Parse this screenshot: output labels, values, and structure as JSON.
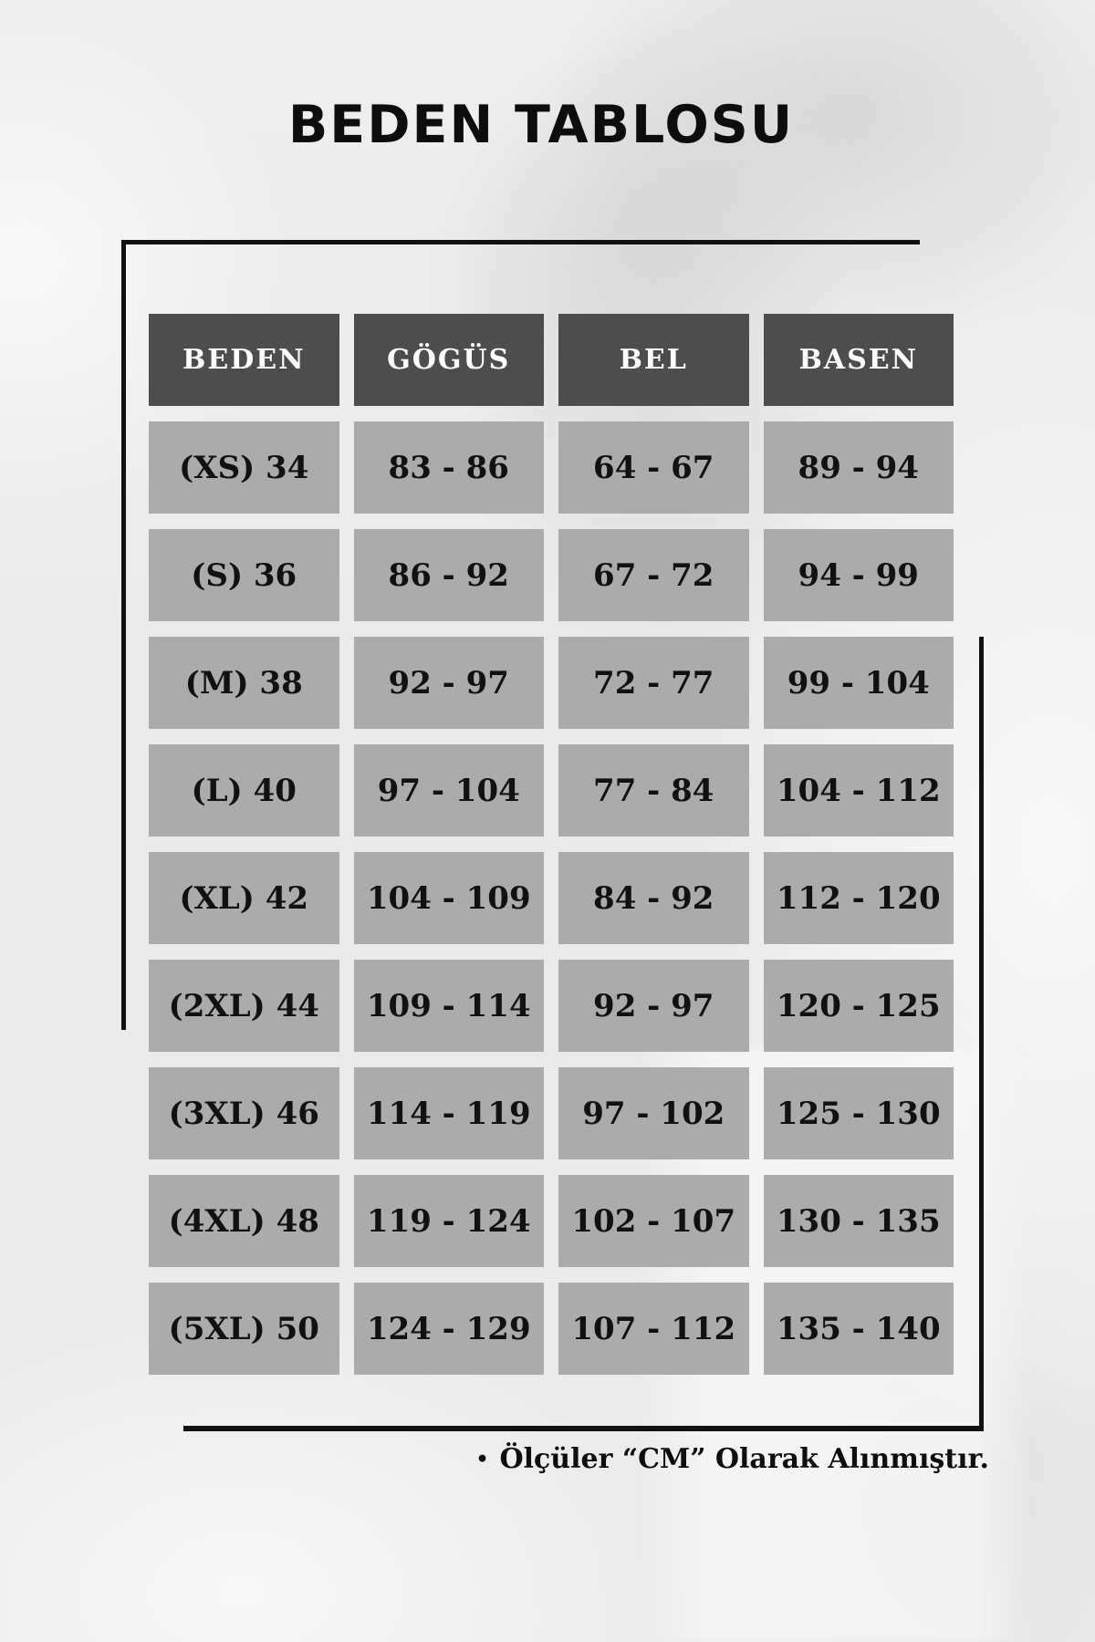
{
  "title": "BEDEN TABLOSU",
  "table": {
    "headers": [
      "BEDEN",
      "GÖGÜS",
      "BEL",
      "BASEN"
    ],
    "rows": [
      [
        "(XS) 34",
        "83 - 86",
        "64 - 67",
        "89 - 94"
      ],
      [
        "(S) 36",
        "86 - 92",
        "67 - 72",
        "94 - 99"
      ],
      [
        "(M) 38",
        "92 - 97",
        "72 - 77",
        "99 - 104"
      ],
      [
        "(L) 40",
        "97 - 104",
        "77 - 84",
        "104 - 112"
      ],
      [
        "(XL) 42",
        "104 - 109",
        "84 - 92",
        "112 - 120"
      ],
      [
        "(2XL) 44",
        "109 - 114",
        "92 - 97",
        "120 - 125"
      ],
      [
        "(3XL) 46",
        "114 - 119",
        "97 - 102",
        "125 - 130"
      ],
      [
        "(4XL) 48",
        "119 - 124",
        "102 - 107",
        "130 - 135"
      ],
      [
        "(5XL) 50",
        "124 - 129",
        "107 - 112",
        "135 - 140"
      ]
    ]
  },
  "footnote": {
    "bullet": "•",
    "text": "Ölçüler “CM” Olarak Alınmıştır."
  },
  "colors": {
    "header_bg": "#4d4d4d",
    "header_text": "#ffffff",
    "cell_bg": "#ababab",
    "cell_text": "#111111",
    "accent_line": "#111111",
    "background": "#ebebeb"
  }
}
